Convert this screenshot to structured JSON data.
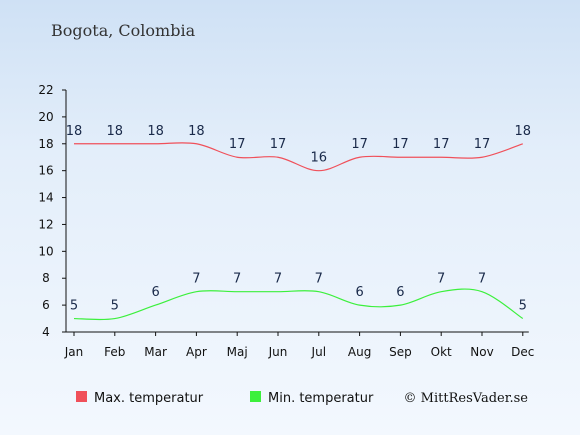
{
  "chart_data": {
    "type": "line",
    "title": "Bogota, Colombia",
    "categories": [
      "Jan",
      "Feb",
      "Mar",
      "Apr",
      "Maj",
      "Jun",
      "Jul",
      "Aug",
      "Sep",
      "Okt",
      "Nov",
      "Dec"
    ],
    "series": [
      {
        "name": "Max. temperatur",
        "color": "#f0505a",
        "values": [
          18,
          18,
          18,
          18,
          17,
          17,
          16,
          17,
          17,
          17,
          17,
          18
        ]
      },
      {
        "name": "Min. temperatur",
        "color": "#3cf03c",
        "values": [
          5,
          5,
          6,
          7,
          7,
          7,
          7,
          6,
          6,
          7,
          7,
          5
        ]
      }
    ],
    "ylim": [
      4,
      22
    ],
    "yticks": [
      4,
      6,
      8,
      10,
      12,
      14,
      16,
      18,
      20,
      22
    ],
    "grid": false,
    "legend_position": "bottom-left"
  },
  "credit": "© MittResVader.se"
}
